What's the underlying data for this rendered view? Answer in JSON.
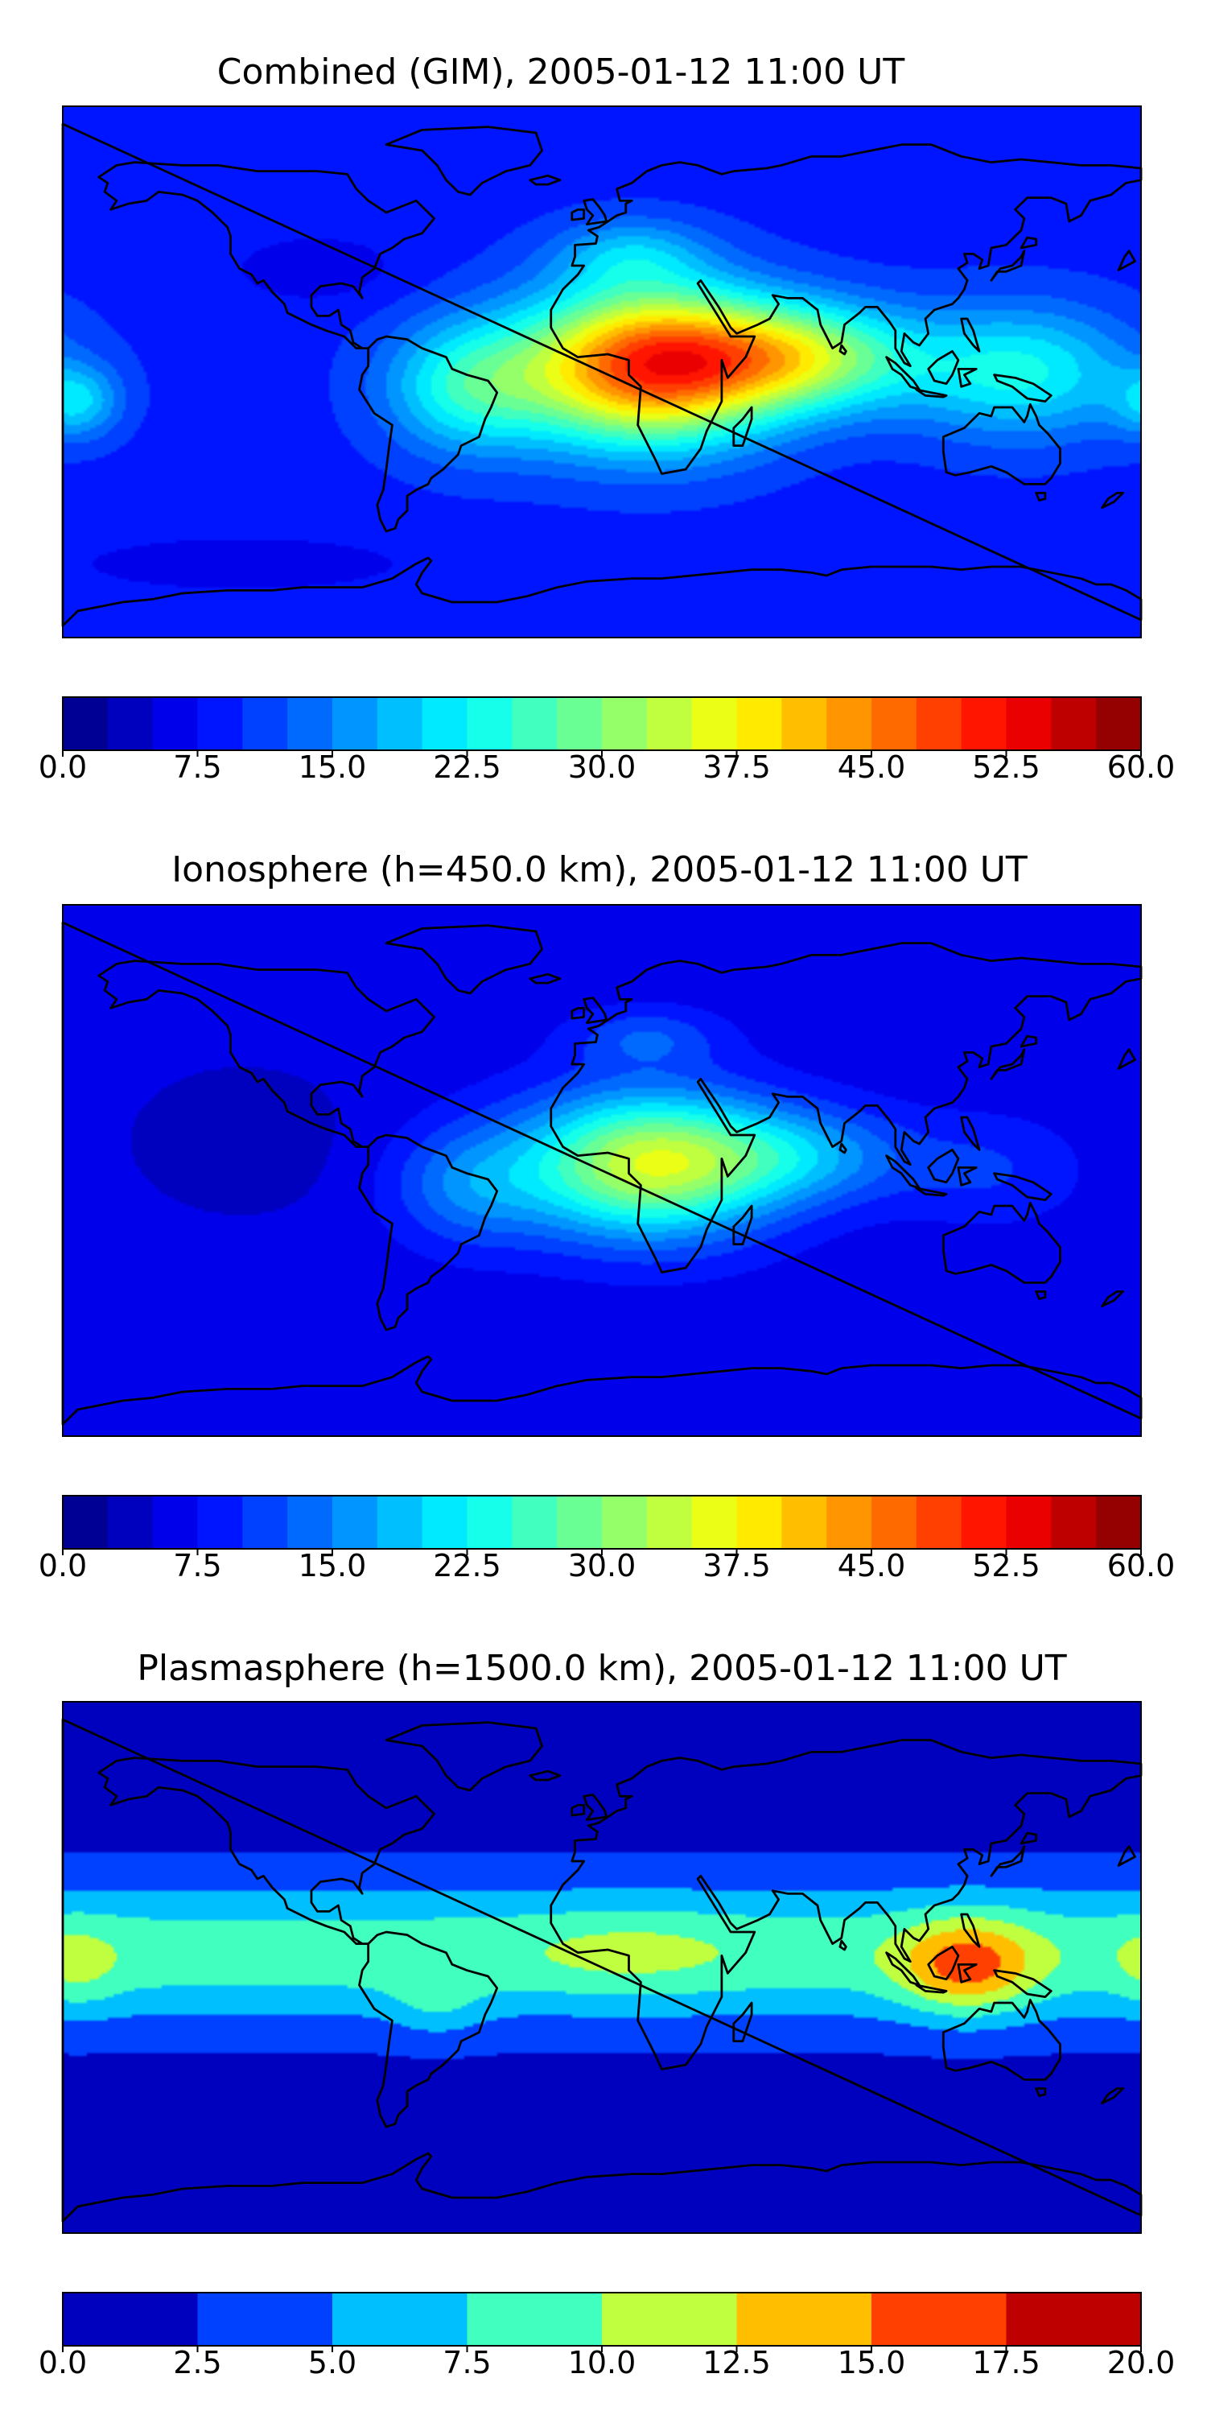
{
  "chart_data": [
    {
      "type": "heatmap",
      "title": "Combined (GIM), 2005-01-12 11:00 UT",
      "xlabel": "",
      "ylabel": "",
      "colormap": "jet",
      "colorbar": {
        "range": [
          0.0,
          60.0
        ],
        "levels": 24,
        "ticks": [
          "0.0",
          "7.5",
          "15.0",
          "22.5",
          "30.0",
          "37.5",
          "45.0",
          "52.5",
          "60.0"
        ]
      },
      "background_level": 9,
      "blobs": [
        {
          "lon": 15,
          "lat": 2,
          "slon": 42,
          "slat": 26,
          "v": 39
        },
        {
          "lon": 65,
          "lat": 5,
          "slon": 40,
          "slat": 18,
          "v": 22
        },
        {
          "lon": 140,
          "lat": 0,
          "slon": 38,
          "slat": 22,
          "v": 14
        },
        {
          "lon": -45,
          "lat": -5,
          "slon": 28,
          "slat": 22,
          "v": 14
        },
        {
          "lon": 10,
          "lat": 40,
          "slon": 25,
          "slat": 12,
          "v": 8
        },
        {
          "lon": -175,
          "lat": -10,
          "slon": 14,
          "slat": 12,
          "v": 10
        },
        {
          "lon": -95,
          "lat": 35,
          "slon": 30,
          "slat": 12,
          "v": -3
        },
        {
          "lon": -120,
          "lat": -65,
          "slon": 60,
          "slat": 10,
          "v": -3
        }
      ]
    },
    {
      "type": "heatmap",
      "title": "Ionosphere  (h=450.0 km), 2005-01-12 11:00 UT",
      "xlabel": "",
      "ylabel": "",
      "colormap": "jet",
      "colorbar": {
        "range": [
          0.0,
          60.0
        ],
        "levels": 24,
        "ticks": [
          "0.0",
          "7.5",
          "15.0",
          "22.5",
          "30.0",
          "37.5",
          "45.0",
          "52.5",
          "60.0"
        ]
      },
      "background_level": 6,
      "blobs": [
        {
          "lon": 15,
          "lat": 2,
          "slon": 42,
          "slat": 24,
          "v": 28
        },
        {
          "lon": 65,
          "lat": 5,
          "slon": 38,
          "slat": 16,
          "v": 10
        },
        {
          "lon": 130,
          "lat": 0,
          "slon": 30,
          "slat": 18,
          "v": 4
        },
        {
          "lon": -45,
          "lat": -5,
          "slon": 26,
          "slat": 20,
          "v": 8
        },
        {
          "lon": 15,
          "lat": 45,
          "slon": 24,
          "slat": 10,
          "v": 6
        },
        {
          "lon": -120,
          "lat": 10,
          "slon": 45,
          "slat": 30,
          "v": -2
        }
      ]
    },
    {
      "type": "heatmap",
      "title": "Plasmasphere (h=1500.0 km), 2005-01-12 11:00 UT",
      "xlabel": "",
      "ylabel": "",
      "colormap": "jet",
      "colorbar": {
        "range": [
          0.0,
          20.0
        ],
        "levels": 8,
        "ticks": [
          "0.0",
          "2.5",
          "5.0",
          "7.5",
          "10.0",
          "12.5",
          "15.0",
          "17.5",
          "20.0"
        ]
      },
      "background_level": 1.5,
      "bands": [
        {
          "lat": 5,
          "sigma": 24,
          "v": 7.5
        }
      ],
      "blobs": [
        {
          "lon": 122,
          "lat": 0,
          "slon": 22,
          "slat": 16,
          "v": 8
        },
        {
          "lon": 10,
          "lat": 5,
          "slon": 35,
          "slat": 14,
          "v": 2
        },
        {
          "lon": -55,
          "lat": -12,
          "slon": 15,
          "slat": 12,
          "v": 2.5
        },
        {
          "lon": -175,
          "lat": 0,
          "slon": 14,
          "slat": 15,
          "v": 2.5
        }
      ]
    }
  ]
}
